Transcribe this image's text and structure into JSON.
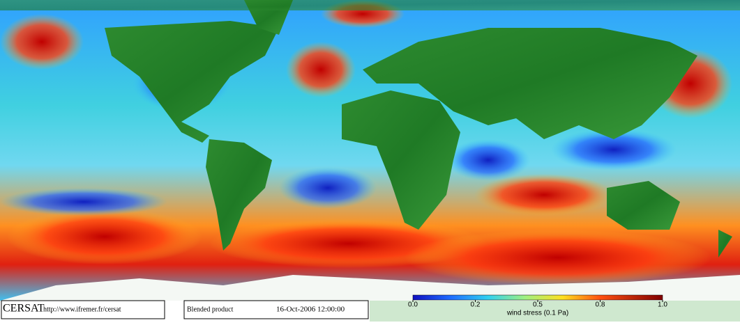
{
  "logo": "CERSAT",
  "url": "http://www.ifremer.fr/cersat",
  "product": "Blended product",
  "date": "16-Oct-2006 12:00:00",
  "colorbar": {
    "label": "wind stress (0.1 Pa)",
    "ticks": [
      {
        "value": 0,
        "label": "0.0"
      },
      0.2,
      0.5,
      0.8,
      {
        "value": 1,
        "label": "1.0"
      }
    ]
  }
}
